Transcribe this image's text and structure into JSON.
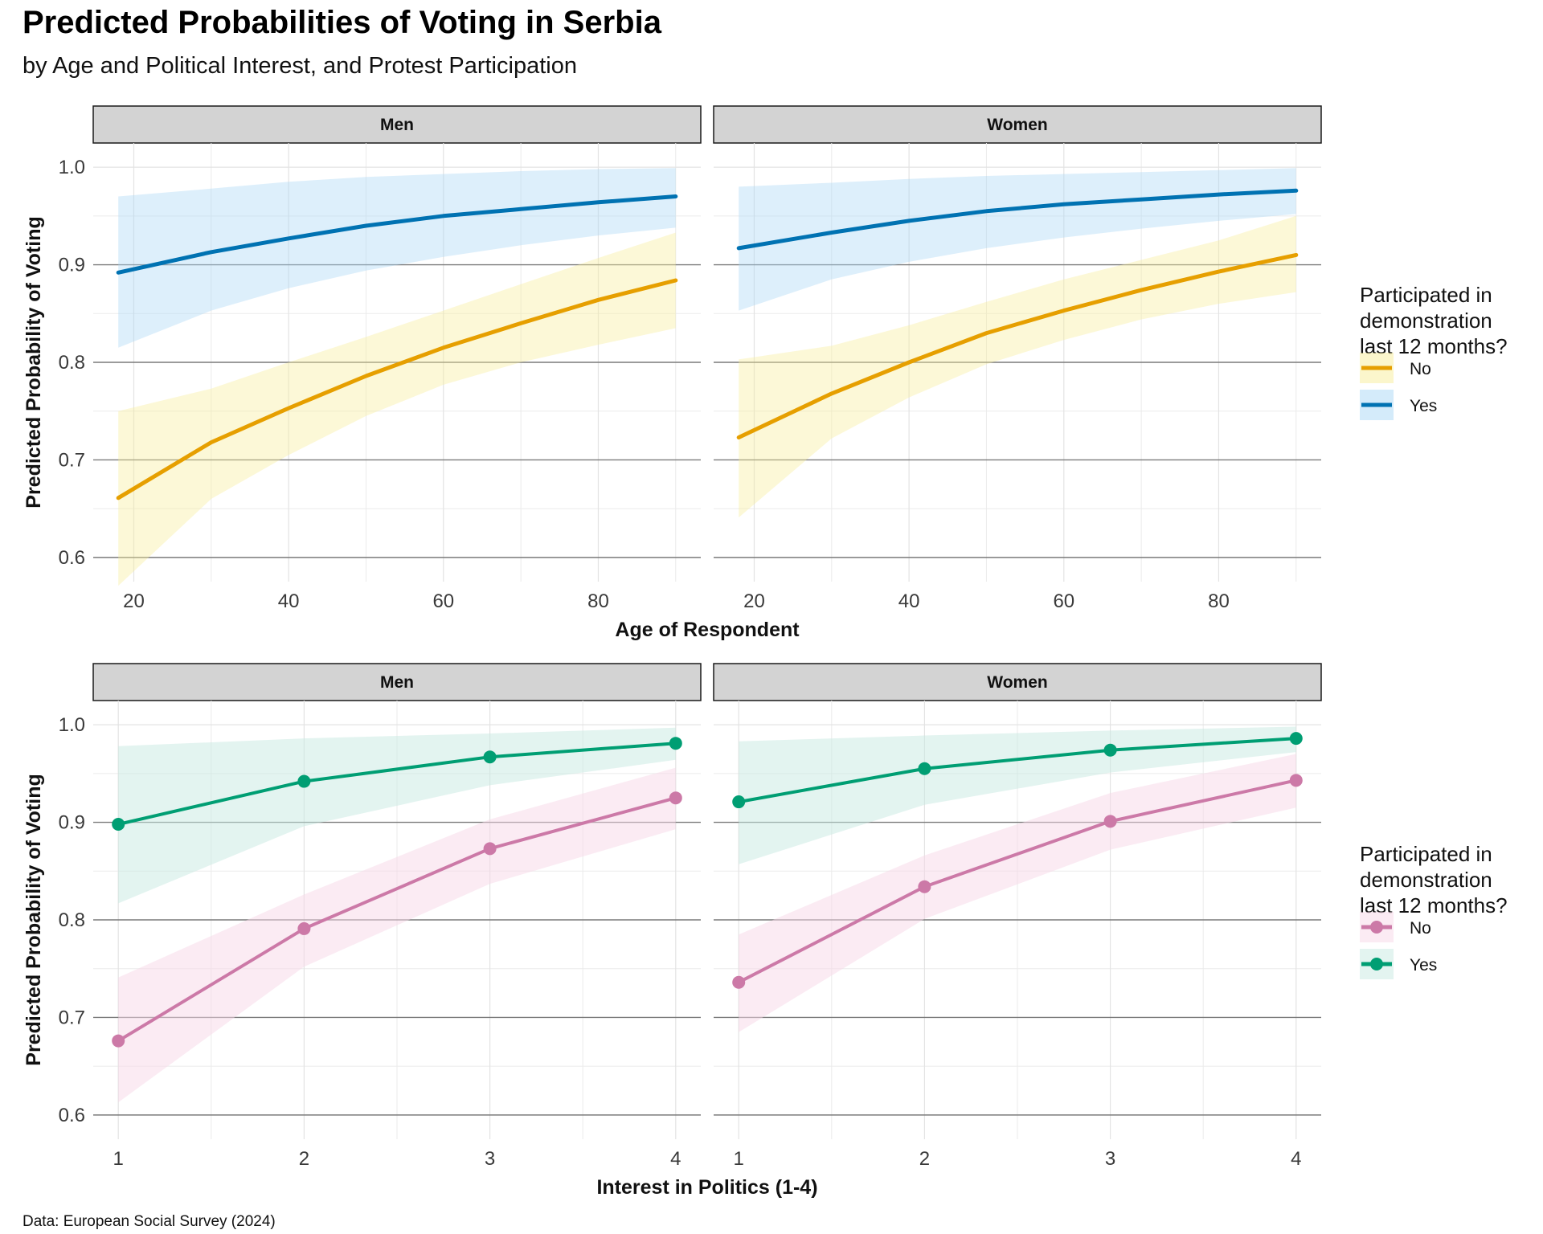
{
  "title": "Predicted Probabilities of Voting in Serbia",
  "subtitle": "by Age and Political Interest, and Protest Participation",
  "caption": "Data: European Social Survey (2024)",
  "chart_data": [
    {
      "type": "line",
      "xlabel": "Age of Respondent",
      "ylabel": "Predicted Probability of Voting",
      "xlim": [
        18,
        90
      ],
      "ylim": [
        0.6,
        1.0
      ],
      "xticks": [
        20,
        40,
        60,
        80
      ],
      "yticks": [
        0.6,
        0.7,
        0.8,
        0.9,
        1.0
      ],
      "legend_title": [
        "Participated in",
        "demonstration",
        "last 12 months?"
      ],
      "legend_position": "right",
      "markers": false,
      "panels": [
        {
          "facet": "Men",
          "series": [
            {
              "name": "No",
              "color": "#E69F00",
              "fill": "#F8EE9A",
              "x": [
                18,
                30,
                40,
                50,
                60,
                70,
                80,
                90
              ],
              "y": [
                0.661,
                0.718,
                0.753,
                0.786,
                0.815,
                0.84,
                0.864,
                0.884
              ],
              "lower": [
                0.571,
                0.66,
                0.705,
                0.745,
                0.777,
                0.8,
                0.818,
                0.835
              ],
              "upper": [
                0.75,
                0.773,
                0.8,
                0.826,
                0.853,
                0.88,
                0.907,
                0.933
              ]
            },
            {
              "name": "Yes",
              "color": "#0072B2",
              "fill": "#A9D8F5",
              "x": [
                18,
                30,
                40,
                50,
                60,
                70,
                80,
                90
              ],
              "y": [
                0.892,
                0.913,
                0.927,
                0.94,
                0.95,
                0.957,
                0.964,
                0.97
              ],
              "lower": [
                0.815,
                0.853,
                0.876,
                0.894,
                0.908,
                0.92,
                0.93,
                0.938
              ],
              "upper": [
                0.97,
                0.978,
                0.985,
                0.99,
                0.993,
                0.996,
                0.998,
                0.999
              ]
            }
          ]
        },
        {
          "facet": "Women",
          "series": [
            {
              "name": "No",
              "color": "#E69F00",
              "fill": "#F8EE9A",
              "x": [
                18,
                30,
                40,
                50,
                60,
                70,
                80,
                90
              ],
              "y": [
                0.723,
                0.768,
                0.8,
                0.83,
                0.853,
                0.874,
                0.893,
                0.91
              ],
              "lower": [
                0.641,
                0.722,
                0.764,
                0.798,
                0.823,
                0.844,
                0.86,
                0.872
              ],
              "upper": [
                0.803,
                0.817,
                0.838,
                0.862,
                0.885,
                0.905,
                0.925,
                0.95
              ]
            },
            {
              "name": "Yes",
              "color": "#0072B2",
              "fill": "#A9D8F5",
              "x": [
                18,
                30,
                40,
                50,
                60,
                70,
                80,
                90
              ],
              "y": [
                0.917,
                0.933,
                0.945,
                0.955,
                0.962,
                0.967,
                0.972,
                0.976
              ],
              "lower": [
                0.853,
                0.885,
                0.903,
                0.917,
                0.928,
                0.937,
                0.945,
                0.952
              ],
              "upper": [
                0.98,
                0.984,
                0.988,
                0.991,
                0.993,
                0.995,
                0.997,
                0.999
              ]
            }
          ]
        }
      ]
    },
    {
      "type": "line",
      "xlabel": "Interest in Politics (1-4)",
      "ylabel": "Predicted Probability of Voting",
      "xlim": [
        1,
        4
      ],
      "ylim": [
        0.6,
        1.0
      ],
      "xticks": [
        1,
        2,
        3,
        4
      ],
      "yticks": [
        0.6,
        0.7,
        0.8,
        0.9,
        1.0
      ],
      "legend_title": [
        "Participated in",
        "demonstration",
        "last 12 months?"
      ],
      "legend_position": "right",
      "markers": true,
      "panels": [
        {
          "facet": "Men",
          "series": [
            {
              "name": "No",
              "color": "#CC79A7",
              "fill": "#F8D7E8",
              "x": [
                1,
                2,
                3,
                4
              ],
              "y": [
                0.676,
                0.791,
                0.873,
                0.925
              ],
              "lower": [
                0.613,
                0.752,
                0.837,
                0.893
              ],
              "upper": [
                0.741,
                0.826,
                0.903,
                0.956
              ]
            },
            {
              "name": "Yes",
              "color": "#009E73",
              "fill": "#C8EAE1",
              "x": [
                1,
                2,
                3,
                4
              ],
              "y": [
                0.898,
                0.942,
                0.967,
                0.981
              ],
              "lower": [
                0.817,
                0.896,
                0.938,
                0.964
              ],
              "upper": [
                0.978,
                0.986,
                0.991,
                0.997
              ]
            }
          ]
        },
        {
          "facet": "Women",
          "series": [
            {
              "name": "No",
              "color": "#CC79A7",
              "fill": "#F8D7E8",
              "x": [
                1,
                2,
                3,
                4
              ],
              "y": [
                0.736,
                0.834,
                0.901,
                0.943
              ],
              "lower": [
                0.685,
                0.801,
                0.872,
                0.915
              ],
              "upper": [
                0.785,
                0.866,
                0.93,
                0.97
              ]
            },
            {
              "name": "Yes",
              "color": "#009E73",
              "fill": "#C8EAE1",
              "x": [
                1,
                2,
                3,
                4
              ],
              "y": [
                0.921,
                0.955,
                0.974,
                0.986
              ],
              "lower": [
                0.857,
                0.918,
                0.951,
                0.972
              ],
              "upper": [
                0.983,
                0.989,
                0.994,
                0.998
              ]
            }
          ]
        }
      ]
    }
  ]
}
